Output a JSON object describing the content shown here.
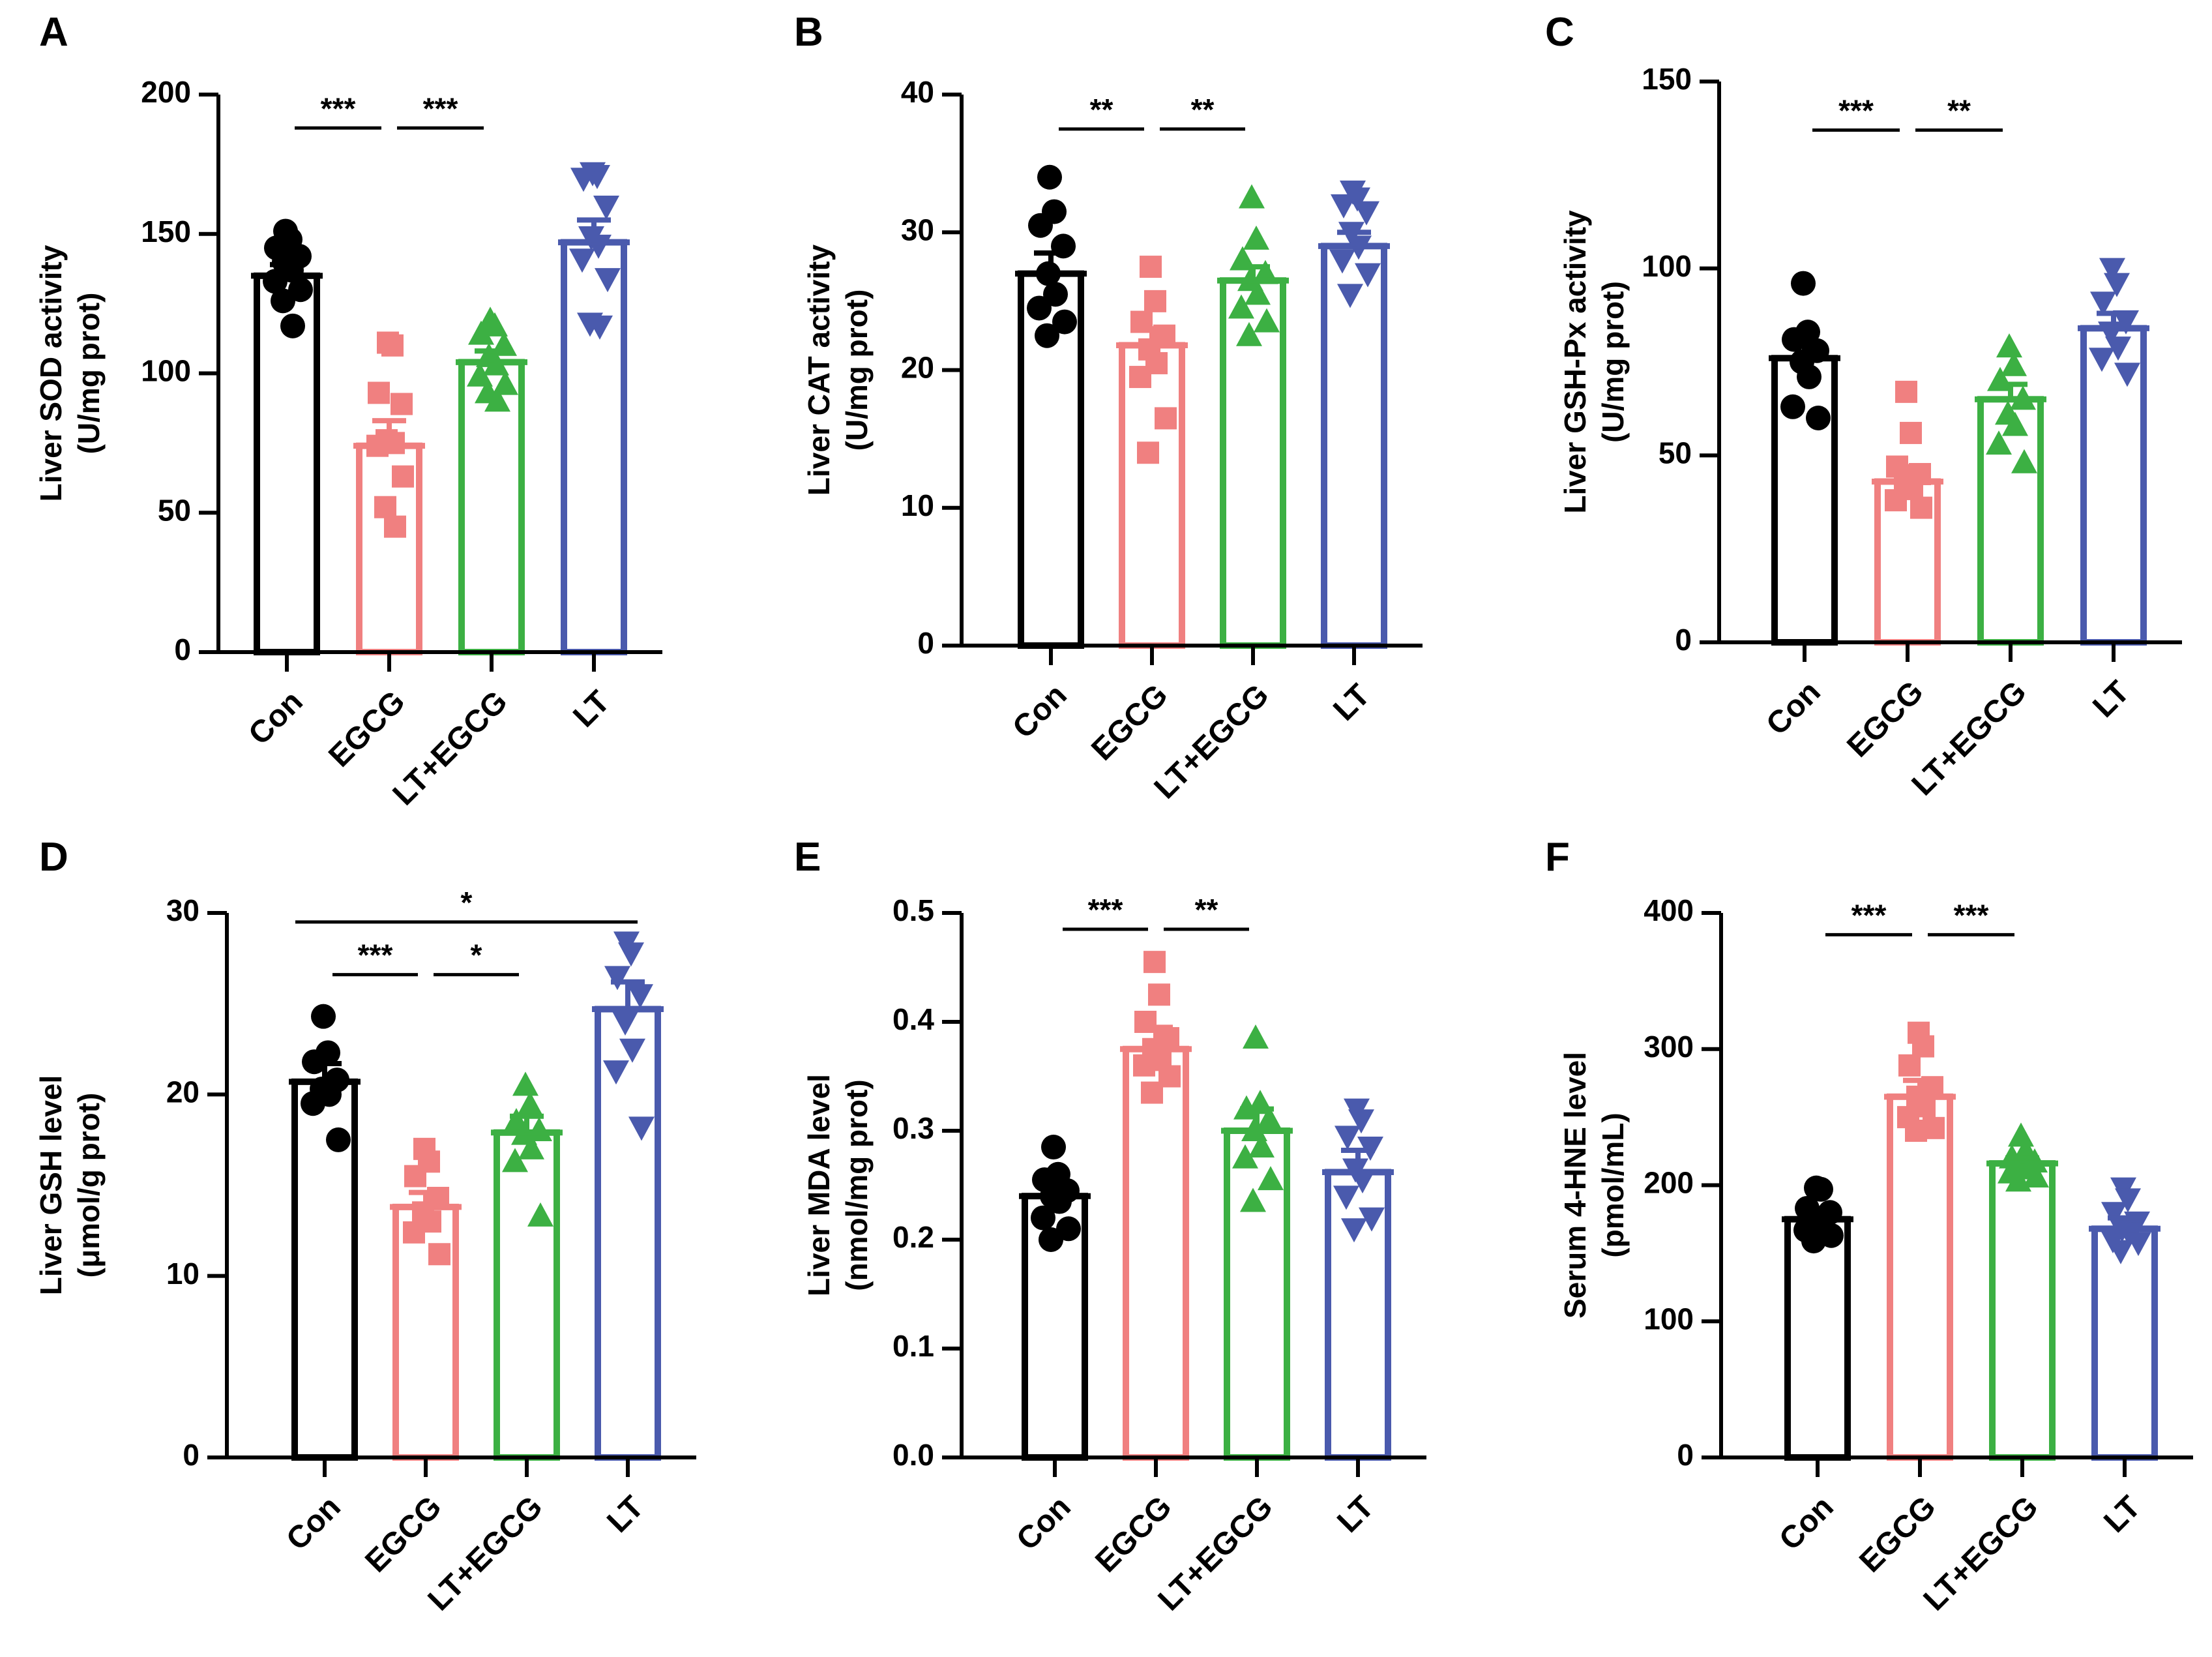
{
  "figure": {
    "groups": [
      "Con",
      "EGCG",
      "LT+EGCG",
      "LT"
    ],
    "group_colors": [
      "#000000",
      "#f08080",
      "#3cb043",
      "#4a5aad"
    ],
    "point_markers": [
      "circle",
      "square",
      "triangle-up",
      "triangle-down"
    ]
  },
  "chart_data": [
    {
      "panel": "A",
      "type": "bar",
      "ylabel_line1": "Liver SOD activity",
      "ylabel_line2": "(U/mg prot)",
      "categories": [
        "Con",
        "EGCG",
        "LT+EGCG",
        "LT"
      ],
      "values": [
        135,
        74,
        104,
        147
      ],
      "sem": [
        4,
        9,
        4,
        8
      ],
      "points": [
        [
          151,
          148,
          145,
          142,
          140,
          137,
          133,
          130,
          126,
          117
        ],
        [
          111,
          110,
          93,
          89,
          76,
          75,
          74,
          63,
          52,
          45
        ],
        [
          119,
          117,
          114,
          110,
          106,
          103,
          99,
          96,
          93,
          90
        ],
        [
          172,
          171,
          170,
          160,
          149,
          146,
          141,
          134,
          118,
          117
        ]
      ],
      "ylim": [
        0,
        200
      ],
      "yticks": [
        "0",
        "50",
        "100",
        "150",
        "200"
      ],
      "sig": [
        {
          "from": 0,
          "to": 1,
          "label": "***",
          "at": 188
        },
        {
          "from": 1,
          "to": 2,
          "label": "***",
          "at": 188
        }
      ]
    },
    {
      "panel": "B",
      "type": "bar",
      "ylabel_line1": "Liver CAT activity",
      "ylabel_line2": "(U/mg prot)",
      "categories": [
        "Con",
        "EGCG",
        "LT+EGCG",
        "LT"
      ],
      "values": [
        27,
        21.8,
        26.5,
        29
      ],
      "sem": [
        1.5,
        1.2,
        1,
        1
      ],
      "points": [
        [
          34,
          31.5,
          30.5,
          29,
          27,
          25.5,
          24.5,
          23.5,
          22.5
        ],
        [
          27.5,
          25,
          23.5,
          22.5,
          21.5,
          20.5,
          19.5,
          16.5,
          14
        ],
        [
          32.5,
          29.5,
          28,
          27,
          26.5,
          25.5,
          24.5,
          23.5,
          22.5
        ],
        [
          33,
          32.5,
          32,
          31.5,
          30,
          29,
          28,
          27,
          25.5
        ]
      ],
      "ylim": [
        0,
        40
      ],
      "yticks": [
        "0",
        "10",
        "20",
        "30",
        "40"
      ],
      "sig": [
        {
          "from": 0,
          "to": 1,
          "label": "**",
          "at": 37.5
        },
        {
          "from": 1,
          "to": 2,
          "label": "**",
          "at": 37.5
        }
      ]
    },
    {
      "panel": "C",
      "type": "bar",
      "ylabel_line1": "Liver GSH-Px activity",
      "ylabel_line2": "(U/mg prot)",
      "categories": [
        "Con",
        "EGCG",
        "LT+EGCG",
        "LT"
      ],
      "values": [
        76,
        43,
        65,
        84
      ],
      "sem": [
        4,
        4,
        4,
        4
      ],
      "points": [
        [
          96,
          83,
          81,
          78,
          75,
          71,
          63,
          60
        ],
        [
          67,
          56,
          47,
          45,
          43,
          41,
          38,
          36
        ],
        [
          79,
          74,
          70,
          65,
          61,
          58,
          53,
          48
        ],
        [
          100,
          96,
          91,
          86,
          83,
          79,
          76,
          72
        ]
      ],
      "ylim": [
        0,
        150
      ],
      "yticks": [
        "0",
        "50",
        "100",
        "150"
      ],
      "sig": [
        {
          "from": 0,
          "to": 1,
          "label": "***",
          "at": 137
        },
        {
          "from": 1,
          "to": 2,
          "label": "**",
          "at": 137
        }
      ]
    },
    {
      "panel": "D",
      "type": "bar",
      "ylabel_line1": "Liver GSH level",
      "ylabel_line2": "(μmol/g prot)",
      "categories": [
        "Con",
        "EGCG",
        "LT+EGCG",
        "LT"
      ],
      "values": [
        20.7,
        13.8,
        17.9,
        24.7
      ],
      "sem": [
        1,
        0.8,
        0.9,
        1.5
      ],
      "points": [
        [
          24.3,
          22.3,
          21.8,
          20.8,
          20.3,
          20,
          19.5,
          17.5
        ],
        [
          17,
          16.3,
          15.5,
          14.3,
          13.5,
          13,
          12.4,
          11.2
        ],
        [
          20.5,
          19.4,
          18.5,
          18,
          17.8,
          17,
          16.3,
          13.3
        ],
        [
          28.4,
          27.8,
          26.5,
          25.5,
          24,
          22.5,
          21.3,
          18.2
        ]
      ],
      "ylim": [
        0,
        30
      ],
      "yticks": [
        "0",
        "10",
        "20",
        "30"
      ],
      "sig": [
        {
          "from": 0,
          "to": 1,
          "label": "***",
          "at": 26.6
        },
        {
          "from": 1,
          "to": 2,
          "label": "*",
          "at": 26.6
        },
        {
          "from": 0,
          "to": 3,
          "label": "*",
          "at": 29.5
        }
      ]
    },
    {
      "panel": "E",
      "type": "bar",
      "ylabel_line1": "Liver MDA level",
      "ylabel_line2": "(nmol/mg prot)",
      "categories": [
        "Con",
        "EGCG",
        "LT+EGCG",
        "LT"
      ],
      "values": [
        0.24,
        0.375,
        0.3,
        0.262
      ],
      "sem": [
        0.01,
        0.02,
        0.02,
        0.02
      ],
      "points": [
        [
          0.285,
          0.26,
          0.255,
          0.245,
          0.24,
          0.235,
          0.22,
          0.21,
          0.2
        ],
        [
          0.455,
          0.425,
          0.4,
          0.385,
          0.375,
          0.365,
          0.36,
          0.35,
          0.335
        ],
        [
          0.385,
          0.325,
          0.32,
          0.31,
          0.3,
          0.285,
          0.275,
          0.255,
          0.235
        ],
        [
          0.32,
          0.31,
          0.295,
          0.285,
          0.265,
          0.255,
          0.24,
          0.22,
          0.21
        ]
      ],
      "ylim": [
        0,
        0.5
      ],
      "yticks": [
        "0.0",
        "0.1",
        "0.2",
        "0.3",
        "0.4",
        "0.5"
      ],
      "sig": [
        {
          "from": 0,
          "to": 1,
          "label": "***",
          "at": 0.485
        },
        {
          "from": 1,
          "to": 2,
          "label": "**",
          "at": 0.485
        }
      ]
    },
    {
      "panel": "F",
      "type": "bar",
      "ylabel_line1": "Serum 4-HNE level",
      "ylabel_line2": "(pmol/mL)",
      "categories": [
        "Con",
        "EGCG",
        "LT+EGCG",
        "LT"
      ],
      "values": [
        175,
        265,
        216,
        168
      ],
      "sem": [
        6,
        12,
        4,
        8
      ],
      "points": [
        [
          198,
          197,
          183,
          180,
          175,
          170,
          167,
          163,
          159
        ],
        [
          312,
          302,
          288,
          272,
          265,
          258,
          250,
          242,
          240
        ],
        [
          236,
          225,
          220,
          217,
          215,
          212,
          209,
          206,
          203
        ],
        [
          198,
          190,
          180,
          173,
          168,
          165,
          160,
          158,
          152
        ]
      ],
      "ylim": [
        0,
        400
      ],
      "yticks": [
        "0",
        "100",
        "200",
        "300",
        "400"
      ],
      "sig": [
        {
          "from": 0,
          "to": 1,
          "label": "***",
          "at": 384
        },
        {
          "from": 1,
          "to": 2,
          "label": "***",
          "at": 384
        }
      ]
    }
  ]
}
